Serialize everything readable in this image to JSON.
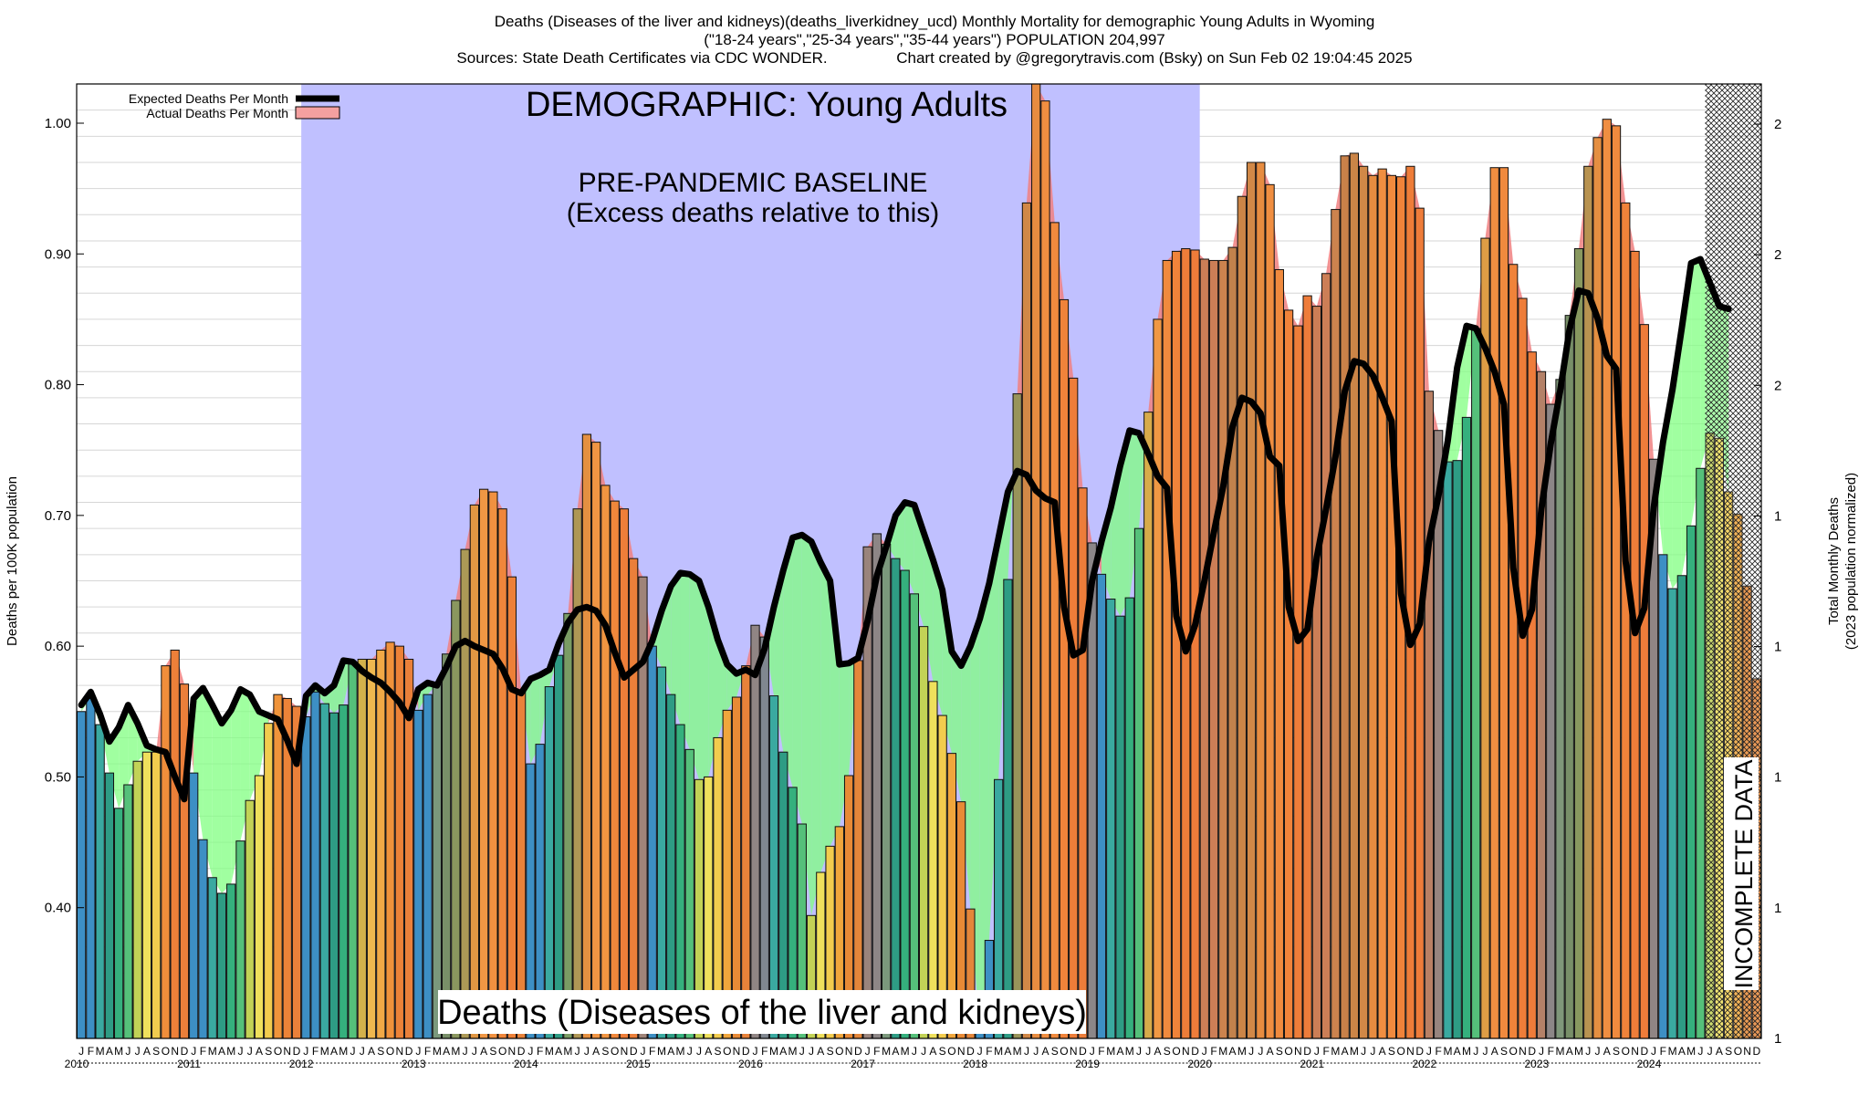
{
  "titles": {
    "line1": "Deaths (Diseases of the liver and kidneys)(deaths_liverkidney_ucd) Monthly Mortality for demographic Young Adults in Wyoming",
    "line2": "(\"18-24 years\",\"25-34 years\",\"35-44 years\") POPULATION 204,997",
    "line3": "Sources: State Death Certificates via CDC WONDER.                Chart created by @gregorytravis.com (Bsky) on Sun Feb 02 19:04:45 2025"
  },
  "annotations": {
    "demographic": "DEMOGRAPHIC: Young Adults",
    "baseline_line1": "PRE-PANDEMIC BASELINE",
    "baseline_line2": "(Excess deaths relative to this)",
    "footer_title": "Deaths (Diseases of the liver and kidneys)",
    "incomplete": "INCOMPLETE DATA"
  },
  "colors": {
    "baseline_region": "#c0c0ff",
    "excess_fill": "#f08080",
    "deficit_fill": "#80ff80",
    "expected_line": "#000000"
  },
  "chart_data": {
    "type": "bar",
    "legend": {
      "position": "top-left",
      "items": [
        "Expected Deaths Per Month",
        "Actual Deaths Per Month"
      ]
    },
    "ylabel_left": "Deaths per 100K population",
    "ylabel_right_line1": "Total Monthly Deaths",
    "ylabel_right_line2": "(2023 population normalized)",
    "ylim": [
      0.3,
      1.03
    ],
    "y_ticks": [
      0.4,
      0.5,
      0.6,
      0.7,
      0.8,
      0.9,
      1.0
    ],
    "y_tick_labels": [
      "0.40",
      "0.50",
      "0.60",
      "0.70",
      "0.80",
      "0.90",
      "1.00"
    ],
    "right_tick_labels": [
      "1",
      "1",
      "1",
      "1",
      "1",
      "2",
      "2",
      "2"
    ],
    "grid": true,
    "baseline_period": [
      "2012-01",
      "2019-12"
    ],
    "incomplete_period": [
      "2024-07",
      "2024-12"
    ],
    "month_letters": [
      "J",
      "F",
      "M",
      "A",
      "M",
      "J",
      "J",
      "A",
      "S",
      "O",
      "N",
      "D"
    ],
    "years": [
      "2010",
      "2011",
      "2012",
      "2013",
      "2014",
      "2015",
      "2016",
      "2017",
      "2018",
      "2019",
      "2020",
      "2021",
      "2022",
      "2023",
      "2024"
    ],
    "series": [
      {
        "name": "Actual Deaths Per Month",
        "values": [
          0.55,
          0.56,
          0.54,
          0.503,
          0.476,
          0.494,
          0.512,
          0.519,
          0.519,
          0.585,
          0.597,
          0.571,
          0.503,
          0.452,
          0.423,
          0.411,
          0.418,
          0.451,
          0.482,
          0.501,
          0.541,
          0.563,
          0.56,
          0.554,
          0.546,
          0.565,
          0.556,
          0.549,
          0.555,
          0.587,
          0.59,
          0.59,
          0.597,
          0.603,
          0.6,
          0.59,
          0.551,
          0.563,
          0.571,
          0.594,
          0.635,
          0.674,
          0.708,
          0.72,
          0.718,
          0.705,
          0.653,
          0.565,
          0.51,
          0.525,
          0.569,
          0.593,
          0.625,
          0.705,
          0.762,
          0.756,
          0.723,
          0.711,
          0.705,
          0.667,
          0.653,
          0.6,
          0.584,
          0.563,
          0.54,
          0.521,
          0.498,
          0.5,
          0.53,
          0.551,
          0.561,
          0.585,
          0.616,
          0.607,
          0.562,
          0.519,
          0.492,
          0.464,
          0.394,
          0.427,
          0.447,
          0.462,
          0.501,
          0.589,
          0.676,
          0.686,
          0.678,
          0.667,
          0.658,
          0.64,
          0.615,
          0.573,
          0.547,
          0.518,
          0.481,
          0.399,
          0.304,
          0.375,
          0.498,
          0.651,
          0.793,
          0.939,
          1.03,
          1.017,
          0.924,
          0.865,
          0.805,
          0.721,
          0.679,
          0.655,
          0.636,
          0.623,
          0.637,
          0.69,
          0.779,
          0.85,
          0.895,
          0.902,
          0.904,
          0.903,
          0.896,
          0.895,
          0.895,
          0.905,
          0.944,
          0.97,
          0.97,
          0.953,
          0.888,
          0.857,
          0.845,
          0.868,
          0.86,
          0.885,
          0.934,
          0.975,
          0.977,
          0.967,
          0.96,
          0.965,
          0.96,
          0.959,
          0.967,
          0.935,
          0.795,
          0.765,
          0.741,
          0.742,
          0.775,
          0.843,
          0.912,
          0.966,
          0.966,
          0.892,
          0.866,
          0.825,
          0.81,
          0.785,
          0.804,
          0.853,
          0.904,
          0.967,
          0.989,
          1.003,
          0.998,
          0.939,
          0.902,
          0.846,
          0.743,
          0.67,
          0.644,
          0.654,
          0.692,
          0.736,
          0.763,
          0.759,
          0.718,
          0.701,
          0.646,
          0.575
        ]
      },
      {
        "name": "Expected Deaths Per Month",
        "values": [
          0.555,
          0.565,
          0.548,
          0.527,
          0.538,
          0.555,
          0.541,
          0.524,
          0.521,
          0.519,
          0.5,
          0.483,
          0.56,
          0.568,
          0.555,
          0.541,
          0.551,
          0.567,
          0.563,
          0.55,
          0.547,
          0.544,
          0.528,
          0.51,
          0.562,
          0.57,
          0.564,
          0.57,
          0.589,
          0.588,
          0.581,
          0.576,
          0.572,
          0.565,
          0.557,
          0.545,
          0.567,
          0.572,
          0.57,
          0.584,
          0.6,
          0.604,
          0.6,
          0.597,
          0.594,
          0.583,
          0.567,
          0.564,
          0.575,
          0.578,
          0.582,
          0.602,
          0.618,
          0.628,
          0.63,
          0.627,
          0.616,
          0.595,
          0.576,
          0.582,
          0.588,
          0.604,
          0.627,
          0.646,
          0.656,
          0.655,
          0.65,
          0.63,
          0.605,
          0.586,
          0.579,
          0.582,
          0.578,
          0.598,
          0.63,
          0.658,
          0.683,
          0.685,
          0.68,
          0.664,
          0.65,
          0.586,
          0.587,
          0.591,
          0.619,
          0.654,
          0.676,
          0.7,
          0.71,
          0.708,
          0.687,
          0.666,
          0.643,
          0.596,
          0.585,
          0.6,
          0.621,
          0.648,
          0.683,
          0.718,
          0.734,
          0.731,
          0.719,
          0.713,
          0.71,
          0.63,
          0.593,
          0.597,
          0.65,
          0.68,
          0.706,
          0.738,
          0.765,
          0.763,
          0.747,
          0.73,
          0.721,
          0.623,
          0.596,
          0.616,
          0.65,
          0.687,
          0.722,
          0.768,
          0.79,
          0.787,
          0.778,
          0.745,
          0.738,
          0.63,
          0.604,
          0.613,
          0.668,
          0.705,
          0.745,
          0.795,
          0.818,
          0.816,
          0.807,
          0.79,
          0.772,
          0.64,
          0.601,
          0.617,
          0.68,
          0.715,
          0.757,
          0.813,
          0.845,
          0.843,
          0.828,
          0.81,
          0.785,
          0.66,
          0.608,
          0.628,
          0.705,
          0.755,
          0.795,
          0.842,
          0.872,
          0.87,
          0.851,
          0.822,
          0.812,
          0.665,
          0.61,
          0.629,
          0.706,
          0.756,
          0.796,
          0.843,
          0.893,
          0.896,
          0.878,
          0.86,
          0.858,
          null,
          null,
          null
        ]
      }
    ]
  }
}
